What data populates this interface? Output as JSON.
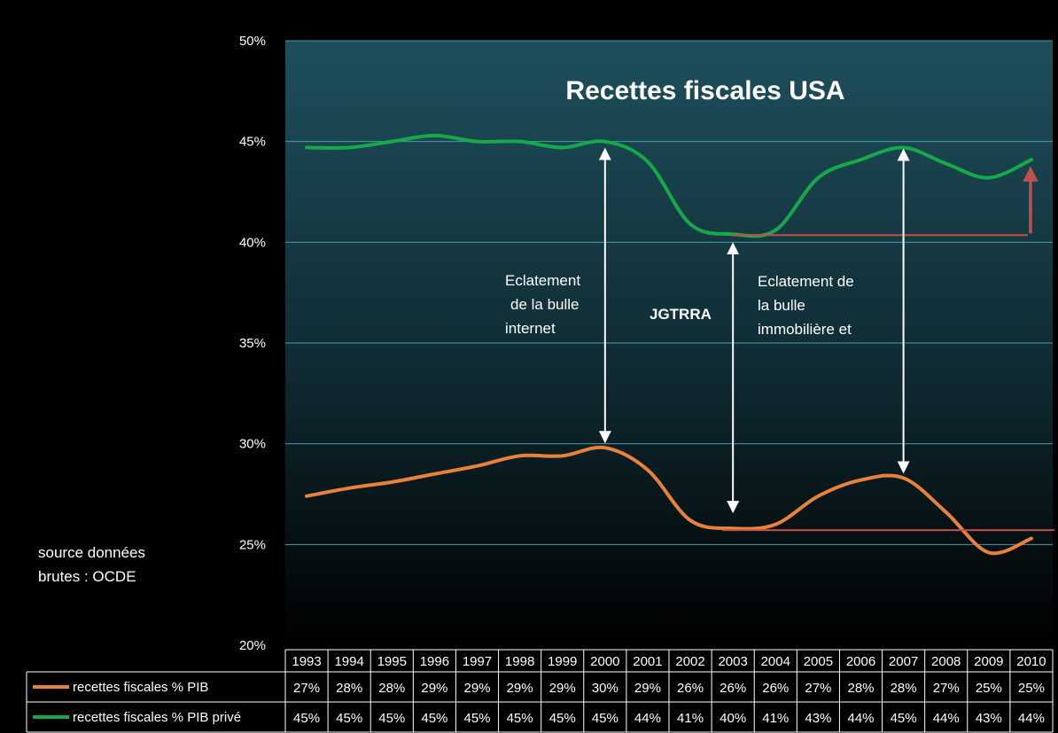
{
  "chart_data": {
    "type": "line",
    "title": "Recettes fiscales USA",
    "categories": [
      "1993",
      "1994",
      "1995",
      "1996",
      "1997",
      "1998",
      "1999",
      "2000",
      "2001",
      "2002",
      "2003",
      "2004",
      "2005",
      "2006",
      "2007",
      "2008",
      "2009",
      "2010"
    ],
    "y_ticks": [
      "50%",
      "45%",
      "40%",
      "35%",
      "30%",
      "25%",
      "20%"
    ],
    "ylim": [
      20,
      50
    ],
    "grid": true,
    "legend_placement": "bottom-table",
    "series": [
      {
        "name": "recettes fiscales % PIB",
        "color": "#e8823a",
        "values": [
          27.4,
          27.8,
          28.1,
          28.5,
          28.9,
          29.4,
          29.4,
          29.8,
          28.7,
          26.2,
          25.8,
          26.0,
          27.4,
          28.2,
          28.3,
          26.6,
          24.6,
          25.3
        ],
        "table": [
          "27%",
          "28%",
          "28%",
          "29%",
          "29%",
          "29%",
          "29%",
          "30%",
          "29%",
          "26%",
          "26%",
          "26%",
          "27%",
          "28%",
          "28%",
          "27%",
          "25%",
          "25%"
        ]
      },
      {
        "name": "recettes fiscales % PIB privé",
        "color": "#17a84a",
        "values": [
          44.7,
          44.7,
          45.0,
          45.3,
          45.0,
          45.0,
          44.7,
          45.0,
          44.0,
          40.9,
          40.4,
          40.6,
          43.2,
          44.1,
          44.7,
          43.9,
          43.2,
          44.1
        ],
        "table": [
          "45%",
          "45%",
          "45%",
          "45%",
          "45%",
          "45%",
          "45%",
          "45%",
          "44%",
          "41%",
          "40%",
          "41%",
          "43%",
          "44%",
          "45%",
          "44%",
          "43%",
          "44%"
        ]
      }
    ],
    "annotations": {
      "bubble_internet": [
        "Eclatement",
        "de la bulle",
        "internet"
      ],
      "jgtrra": "JGTRRA",
      "bubble_housing": [
        "Eclatement de",
        "la bulle",
        "immobilière et"
      ],
      "source": [
        "source données",
        "brutes : OCDE"
      ]
    },
    "colors": {
      "reference_line": "#c0504d",
      "grid": "#4a9aa8",
      "arrow": "#ffffff"
    }
  }
}
